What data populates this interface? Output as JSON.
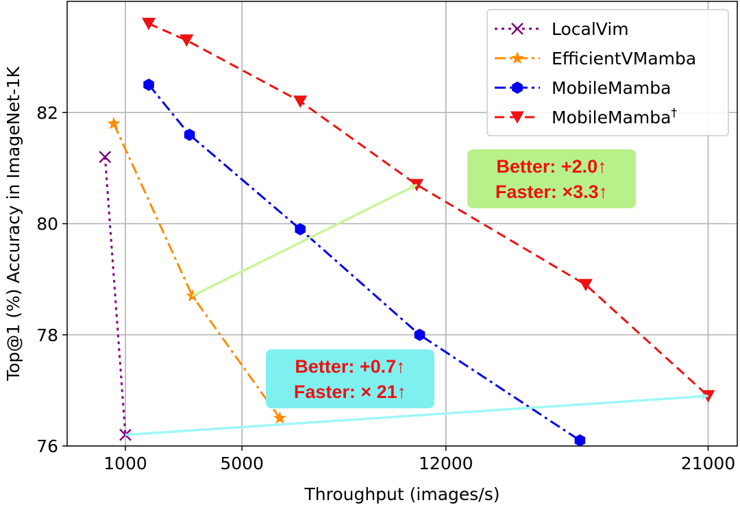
{
  "chart_data": {
    "type": "line",
    "title": "",
    "xlabel": "Throughput (images/s)",
    "ylabel": "Top@1 (%) Accuracy in ImageNet-1K",
    "xlim": [
      -1000,
      22000
    ],
    "ylim": [
      76,
      84
    ],
    "xticks": [
      1000,
      5000,
      12000,
      21000
    ],
    "yticks": [
      76,
      78,
      80,
      82
    ],
    "xtick_labels": [
      "1000",
      "5000",
      "12000",
      "21000"
    ],
    "ytick_labels": [
      "76",
      "78",
      "80",
      "82"
    ],
    "grid": true,
    "legend_position": "top-right",
    "series": [
      {
        "name": "LocalVim",
        "color": "#800080",
        "marker": "x",
        "linestyle": "dotted",
        "x": [
          300,
          1000
        ],
        "y": [
          81.2,
          76.2
        ]
      },
      {
        "name": "EfficientVMamba",
        "color": "#ff8c00",
        "marker": "star",
        "linestyle": "dashdot",
        "x": [
          600,
          3300,
          6300
        ],
        "y": [
          81.8,
          78.7,
          76.5
        ]
      },
      {
        "name": "MobileMamba",
        "color": "#0000ee",
        "marker": "hexagon",
        "linestyle": "dashdot",
        "x": [
          1800,
          3200,
          7000,
          11100,
          16600
        ],
        "y": [
          82.5,
          81.6,
          79.9,
          78.0,
          76.1
        ]
      },
      {
        "name": "MobileMamba",
        "name_sup": "†",
        "color": "#ee1111",
        "marker": "triangle-down",
        "linestyle": "dashed",
        "x": [
          1800,
          3100,
          7000,
          11000,
          16800,
          21000
        ],
        "y": [
          83.6,
          83.3,
          82.2,
          80.7,
          78.9,
          76.9
        ]
      }
    ],
    "annotations": [
      {
        "lines": [
          "Better: +2.0↑",
          "Faster: ×3.3↑"
        ],
        "box_color": "#b8f18a",
        "arrow_color": "#c8f59a",
        "arrow_from": [
          3300,
          78.7
        ],
        "arrow_to": [
          11000,
          80.7
        ]
      },
      {
        "lines": [
          "Better: +0.7↑",
          "Faster: × 21↑"
        ],
        "box_color": "#7ff0f0",
        "arrow_color": "#9ff7f7",
        "arrow_from": [
          1000,
          76.2
        ],
        "arrow_to": [
          21000,
          76.9
        ]
      }
    ]
  }
}
